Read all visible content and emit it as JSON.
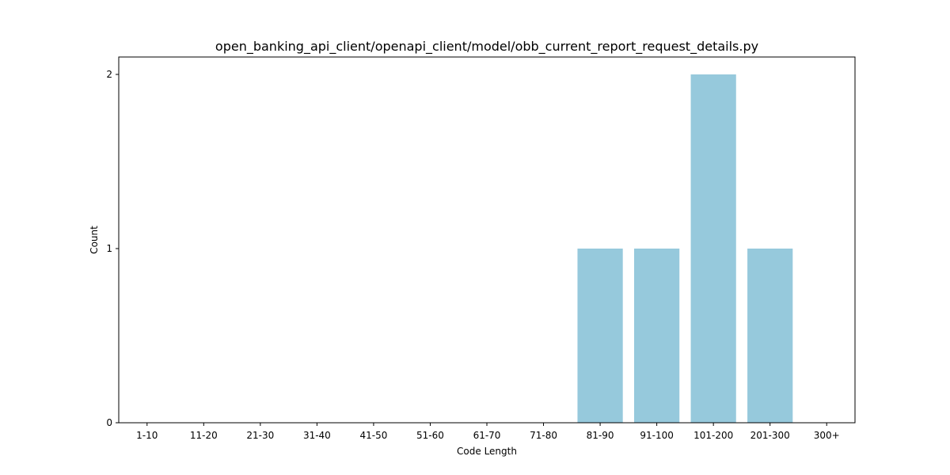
{
  "chart_data": {
    "type": "bar",
    "title": "open_banking_api_client/openapi_client/model/obb_current_report_request_details.py",
    "xlabel": "Code Length",
    "ylabel": "Count",
    "categories": [
      "1-10",
      "11-20",
      "21-30",
      "31-40",
      "41-50",
      "51-60",
      "61-70",
      "71-80",
      "81-90",
      "91-100",
      "101-200",
      "201-300",
      "300+"
    ],
    "values": [
      0,
      0,
      0,
      0,
      0,
      0,
      0,
      0,
      1,
      1,
      2,
      1,
      0
    ],
    "ylim": [
      0,
      2.1
    ],
    "yticks": [
      0,
      1,
      2
    ],
    "bar_color": "#96c9dc",
    "grid": false
  }
}
